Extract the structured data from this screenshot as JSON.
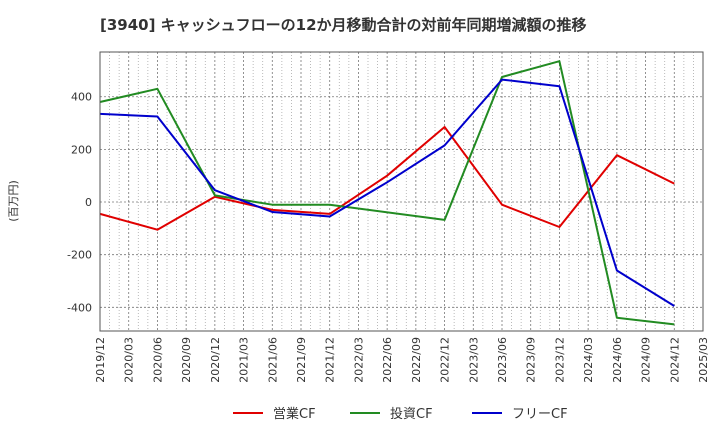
{
  "chart_data": {
    "type": "line",
    "title": "[3940]  キャッシュフローの12か月移動合計の対前年同期増減額の推移",
    "ylabel": "(百万円)",
    "xlabel": "",
    "ylim": [
      -490,
      570
    ],
    "yticks": [
      -400,
      -200,
      0,
      200,
      400
    ],
    "x_ticks": [
      "2019/12",
      "2020/03",
      "2020/06",
      "2020/09",
      "2020/12",
      "2021/03",
      "2021/06",
      "2021/09",
      "2021/12",
      "2022/03",
      "2022/06",
      "2022/09",
      "2022/12",
      "2023/03",
      "2023/06",
      "2023/09",
      "2023/12",
      "2024/03",
      "2024/06",
      "2024/09",
      "2024/12",
      "2025/03"
    ],
    "grid": true,
    "legend_position": "bottom",
    "series": [
      {
        "name": "営業CF",
        "color": "#e00000",
        "points": [
          [
            "2019/12",
            -45
          ],
          [
            "2020/06",
            -105
          ],
          [
            "2020/12",
            20
          ],
          [
            "2021/06",
            -30
          ],
          [
            "2021/12",
            -45
          ],
          [
            "2022/06",
            100
          ],
          [
            "2022/12",
            285
          ],
          [
            "2023/06",
            -10
          ],
          [
            "2023/12",
            -95
          ],
          [
            "2024/06",
            178
          ],
          [
            "2024/12",
            70
          ]
        ]
      },
      {
        "name": "投資CF",
        "color": "#228b22",
        "points": [
          [
            "2019/12",
            380
          ],
          [
            "2020/06",
            430
          ],
          [
            "2020/12",
            25
          ],
          [
            "2021/06",
            -10
          ],
          [
            "2021/12",
            -10
          ],
          [
            "2022/12",
            -68
          ],
          [
            "2023/06",
            475
          ],
          [
            "2023/12",
            535
          ],
          [
            "2024/06",
            -440
          ],
          [
            "2024/12",
            -465
          ]
        ]
      },
      {
        "name": "フリーCF",
        "color": "#0000cc",
        "points": [
          [
            "2019/12",
            335
          ],
          [
            "2020/06",
            325
          ],
          [
            "2020/12",
            45
          ],
          [
            "2021/06",
            -38
          ],
          [
            "2021/12",
            -55
          ],
          [
            "2022/06",
            75
          ],
          [
            "2022/12",
            215
          ],
          [
            "2023/06",
            465
          ],
          [
            "2023/12",
            440
          ],
          [
            "2024/06",
            -260
          ],
          [
            "2024/12",
            -395
          ]
        ]
      }
    ]
  }
}
